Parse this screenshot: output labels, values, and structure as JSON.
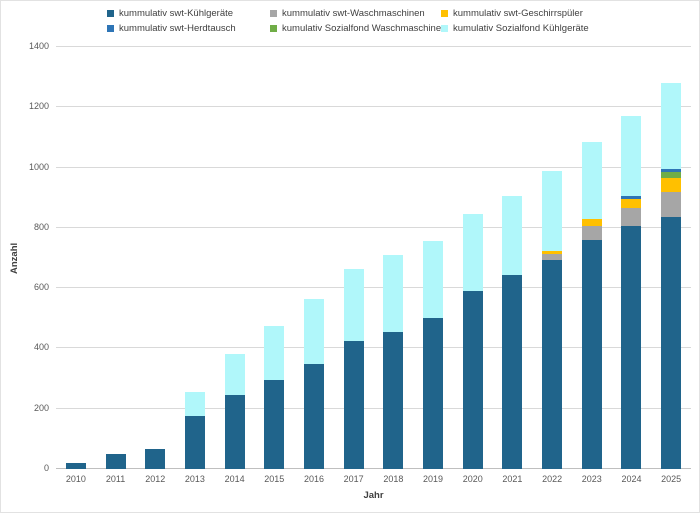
{
  "legend": {
    "items": [
      {
        "key": "swt-kuehlgeraete",
        "label": "kummulativ swt-Kühlgeräte",
        "color": "#20648B"
      },
      {
        "key": "swt-waschmaschinen",
        "label": "kummulativ swt-Waschmaschinen",
        "color": "#A6A6A6"
      },
      {
        "key": "swt-geschirrspueler",
        "label": "kummulativ swt-Geschirrspüler",
        "color": "#FFC000"
      },
      {
        "key": "swt-herdtausch",
        "label": "kummulativ swt-Herdtausch",
        "color": "#2E75B6"
      },
      {
        "key": "sozialfond-waschmaschine",
        "label": "kumulativ Sozialfond Waschmaschine",
        "color": "#70AD47"
      },
      {
        "key": "sozialfond-kuehlgeraete",
        "label": "kumulativ Sozialfond Kühlgeräte",
        "color": "#B0F7FA"
      }
    ]
  },
  "chart_data": {
    "type": "bar",
    "stacked": true,
    "title": "",
    "xlabel": "Jahr",
    "ylabel": "Anzahl",
    "ylim": [
      0,
      1400
    ],
    "y_ticks": [
      0,
      200,
      400,
      600,
      800,
      1000,
      1200,
      1400
    ],
    "grid": true,
    "legend_position": "top",
    "categories": [
      "2010",
      "2011",
      "2012",
      "2013",
      "2014",
      "2015",
      "2016",
      "2017",
      "2018",
      "2019",
      "2020",
      "2021",
      "2022",
      "2023",
      "2024",
      "2025"
    ],
    "series": [
      {
        "name": "kummulativ swt-Kühlgeräte",
        "color": "#20648B",
        "values": [
          20,
          50,
          65,
          175,
          245,
          295,
          350,
          425,
          455,
          500,
          590,
          645,
          695,
          760,
          805,
          835
        ]
      },
      {
        "name": "kummulativ swt-Waschmaschinen",
        "color": "#A6A6A6",
        "values": [
          0,
          0,
          0,
          0,
          0,
          0,
          0,
          0,
          0,
          0,
          0,
          0,
          20,
          45,
          60,
          85
        ]
      },
      {
        "name": "kummulativ swt-Geschirrspüler",
        "color": "#FFC000",
        "values": [
          0,
          0,
          0,
          0,
          0,
          0,
          0,
          0,
          0,
          0,
          0,
          0,
          10,
          25,
          30,
          45
        ]
      },
      {
        "name": "kumulativ Sozialfond Waschmaschine",
        "color": "#70AD47",
        "values": [
          0,
          0,
          0,
          0,
          0,
          0,
          0,
          0,
          0,
          0,
          0,
          0,
          0,
          0,
          0,
          20
        ]
      },
      {
        "name": "kummulativ swt-Herdtausch",
        "color": "#2E75B6",
        "values": [
          0,
          0,
          0,
          0,
          0,
          0,
          0,
          0,
          0,
          0,
          0,
          0,
          0,
          0,
          10,
          10
        ]
      },
      {
        "name": "kumulativ Sozialfond Kühlgeräte",
        "color": "#B0F7FA",
        "values": [
          0,
          0,
          0,
          80,
          135,
          180,
          215,
          240,
          255,
          255,
          255,
          260,
          265,
          255,
          265,
          285
        ]
      }
    ],
    "stack_order": "series listed bottom-to-top",
    "totals": [
      20,
      50,
      65,
      255,
      380,
      475,
      565,
      665,
      710,
      755,
      845,
      905,
      990,
      1085,
      1170,
      1280
    ]
  }
}
